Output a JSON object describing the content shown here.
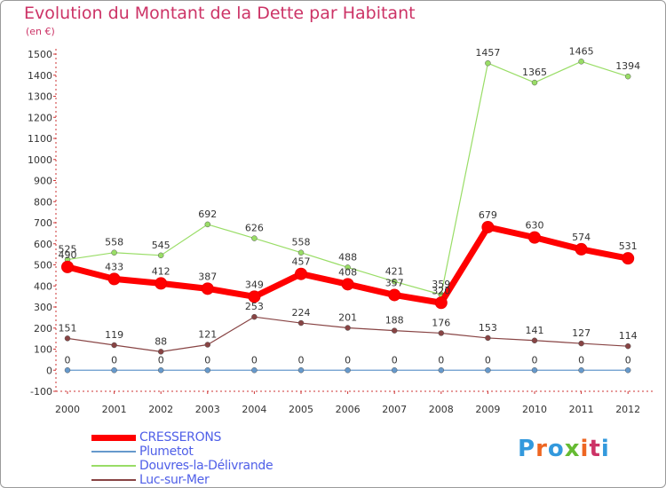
{
  "chart_data": {
    "type": "line",
    "title": "Evolution du Montant de la Dette par Habitant",
    "subtitle": "(en €)",
    "xlabel": "",
    "ylabel": "",
    "ylim": [
      -100,
      1500
    ],
    "yticks": [
      -100,
      0,
      100,
      200,
      300,
      400,
      500,
      600,
      700,
      800,
      900,
      1000,
      1100,
      1200,
      1300,
      1400,
      1500
    ],
    "x": [
      "2000",
      "2001",
      "2002",
      "2003",
      "2004",
      "2005",
      "2006",
      "2007",
      "2008",
      "2009",
      "2010",
      "2011",
      "2012"
    ],
    "grid": false,
    "legend_position": "bottom-left",
    "series": [
      {
        "name": "CRESSERONS",
        "color": "#ff0000",
        "values": [
          490,
          433,
          412,
          387,
          349,
          457,
          408,
          357,
          320,
          679,
          630,
          574,
          531
        ]
      },
      {
        "name": "Plumetot",
        "color": "#6699cc",
        "values": [
          0,
          0,
          0,
          0,
          0,
          0,
          0,
          0,
          0,
          0,
          0,
          0,
          0
        ]
      },
      {
        "name": "Douvres-la-Délivrande",
        "color": "#99dd66",
        "values": [
          525,
          558,
          545,
          692,
          626,
          558,
          488,
          421,
          359,
          1457,
          1365,
          1465,
          1394
        ]
      },
      {
        "name": "Luc-sur-Mer",
        "color": "#884444",
        "values": [
          151,
          119,
          88,
          121,
          253,
          224,
          201,
          188,
          176,
          153,
          141,
          127,
          114
        ]
      }
    ]
  },
  "branding": {
    "logo_text": "Proxiti"
  }
}
